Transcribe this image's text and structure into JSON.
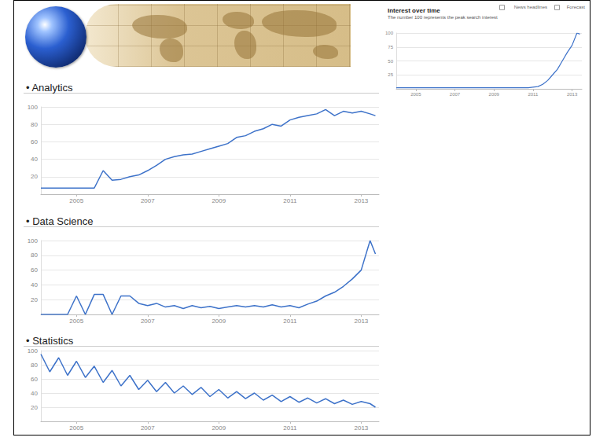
{
  "chart_data": [
    {
      "type": "line",
      "title": "Interest over time",
      "subtitle": "The number 100 represents the peak search interest",
      "annotations": [
        "News headlines",
        "Forecast"
      ],
      "x": [
        2004,
        2004.25,
        2004.5,
        2004.75,
        2005,
        2005.25,
        2005.5,
        2005.75,
        2006,
        2006.25,
        2006.5,
        2006.75,
        2007,
        2007.25,
        2007.5,
        2007.75,
        2008,
        2008.25,
        2008.5,
        2008.75,
        2009,
        2009.25,
        2009.5,
        2009.75,
        2010,
        2010.25,
        2010.5,
        2010.75,
        2011,
        2011.25,
        2011.5,
        2011.75,
        2012,
        2012.25,
        2012.5,
        2012.75,
        2013,
        2013.25,
        2013.4
      ],
      "values": [
        2,
        2,
        2,
        2,
        2,
        2,
        2,
        2,
        2,
        2,
        2,
        2,
        2,
        2,
        2,
        2,
        2,
        2,
        2,
        2,
        2,
        2,
        2,
        2,
        2,
        2,
        2,
        2,
        3,
        4,
        8,
        15,
        25,
        35,
        50,
        65,
        78,
        100,
        98
      ],
      "color": "#3d72c9",
      "xlim": [
        2004,
        2013.5
      ],
      "xticks": [
        2005,
        2007,
        2009,
        2011,
        2013
      ],
      "ylim": [
        0,
        100
      ],
      "yticks": [
        25,
        50,
        75,
        100
      ],
      "grid": true
    },
    {
      "type": "line",
      "title": "• Analytics",
      "x": [
        2004,
        2004.25,
        2004.5,
        2004.75,
        2005,
        2005.25,
        2005.5,
        2005.75,
        2006,
        2006.25,
        2006.5,
        2006.75,
        2007,
        2007.25,
        2007.5,
        2007.75,
        2008,
        2008.25,
        2008.5,
        2008.75,
        2009,
        2009.25,
        2009.5,
        2009.75,
        2010,
        2010.25,
        2010.5,
        2010.75,
        2011,
        2011.25,
        2011.5,
        2011.75,
        2012,
        2012.25,
        2012.5,
        2012.75,
        2013,
        2013.25,
        2013.4
      ],
      "values": [
        7,
        7,
        7,
        7,
        7,
        7,
        7,
        27,
        16,
        17,
        20,
        22,
        27,
        33,
        40,
        43,
        45,
        46,
        49,
        52,
        55,
        58,
        65,
        67,
        72,
        75,
        80,
        78,
        85,
        88,
        90,
        92,
        97,
        90,
        95,
        93,
        95,
        92,
        90
      ],
      "color": "#3d72c9",
      "xlim": [
        2004,
        2013.5
      ],
      "xticks": [
        2005,
        2007,
        2009,
        2011,
        2013
      ],
      "ylim": [
        0,
        100
      ],
      "yticks": [
        20,
        40,
        60,
        80,
        100
      ],
      "grid": true
    },
    {
      "type": "line",
      "title": "• Data Science",
      "x": [
        2004,
        2004.25,
        2004.5,
        2004.75,
        2005,
        2005.25,
        2005.5,
        2005.75,
        2006,
        2006.25,
        2006.5,
        2006.75,
        2007,
        2007.25,
        2007.5,
        2007.75,
        2008,
        2008.25,
        2008.5,
        2008.75,
        2009,
        2009.25,
        2009.5,
        2009.75,
        2010,
        2010.25,
        2010.5,
        2010.75,
        2011,
        2011.25,
        2011.5,
        2011.75,
        2012,
        2012.25,
        2012.5,
        2012.75,
        2013,
        2013.25,
        2013.4
      ],
      "values": [
        0,
        0,
        0,
        0,
        25,
        0,
        27,
        27,
        0,
        25,
        25,
        15,
        12,
        15,
        10,
        12,
        8,
        12,
        9,
        11,
        8,
        10,
        12,
        10,
        12,
        10,
        13,
        10,
        12,
        9,
        14,
        18,
        25,
        30,
        38,
        48,
        60,
        100,
        82
      ],
      "color": "#3d72c9",
      "xlim": [
        2004,
        2013.5
      ],
      "xticks": [
        2005,
        2007,
        2009,
        2011,
        2013
      ],
      "ylim": [
        0,
        100
      ],
      "yticks": [
        20,
        40,
        60,
        80,
        100
      ],
      "grid": true
    },
    {
      "type": "line",
      "title": "• Statistics",
      "x": [
        2004,
        2004.25,
        2004.5,
        2004.75,
        2005,
        2005.25,
        2005.5,
        2005.75,
        2006,
        2006.25,
        2006.5,
        2006.75,
        2007,
        2007.25,
        2007.5,
        2007.75,
        2008,
        2008.25,
        2008.5,
        2008.75,
        2009,
        2009.25,
        2009.5,
        2009.75,
        2010,
        2010.25,
        2010.5,
        2010.75,
        2011,
        2011.25,
        2011.5,
        2011.75,
        2012,
        2012.25,
        2012.5,
        2012.75,
        2013,
        2013.25,
        2013.4
      ],
      "values": [
        95,
        70,
        90,
        65,
        85,
        62,
        78,
        55,
        72,
        50,
        65,
        45,
        58,
        42,
        55,
        40,
        50,
        38,
        48,
        35,
        45,
        33,
        42,
        32,
        40,
        30,
        37,
        28,
        35,
        27,
        33,
        26,
        32,
        25,
        30,
        24,
        28,
        25,
        20
      ],
      "color": "#3d72c9",
      "xlim": [
        2004,
        2013.5
      ],
      "xticks": [
        2005,
        2007,
        2009,
        2011,
        2013
      ],
      "ylim": [
        0,
        100
      ],
      "yticks": [
        20,
        40,
        60,
        80,
        100
      ],
      "grid": true
    }
  ]
}
